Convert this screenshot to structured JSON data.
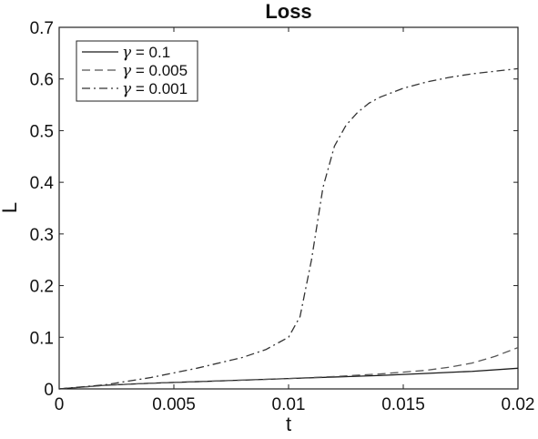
{
  "chart_data": {
    "type": "line",
    "title": "Loss",
    "xlabel": "t",
    "ylabel": "L",
    "xlim": [
      0,
      0.02
    ],
    "ylim": [
      0,
      0.7
    ],
    "xticks": [
      "0",
      "0.005",
      "0.01",
      "0.015",
      "0.02"
    ],
    "yticks": [
      "0",
      "0.1",
      "0.2",
      "0.3",
      "0.4",
      "0.5",
      "0.6",
      "0.7"
    ],
    "grid": false,
    "legend_position": "top-left",
    "series": [
      {
        "name": "γ = 0.1",
        "gamma_symbol": "γ",
        "label_rest": " = 0.1",
        "line_style": "solid",
        "color": "#1a1a1a",
        "x": [
          0,
          0.002,
          0.004,
          0.006,
          0.008,
          0.01,
          0.012,
          0.014,
          0.016,
          0.018,
          0.02
        ],
        "y": [
          0,
          0.007,
          0.011,
          0.014,
          0.017,
          0.02,
          0.023,
          0.026,
          0.03,
          0.034,
          0.04
        ]
      },
      {
        "name": "γ = 0.005",
        "gamma_symbol": "γ",
        "label_rest": " = 0.005",
        "line_style": "dashed",
        "color": "#555555",
        "x": [
          0,
          0.002,
          0.004,
          0.006,
          0.008,
          0.01,
          0.012,
          0.014,
          0.016,
          0.017,
          0.018,
          0.019,
          0.02
        ],
        "y": [
          0,
          0.007,
          0.011,
          0.014,
          0.017,
          0.02,
          0.024,
          0.029,
          0.036,
          0.042,
          0.05,
          0.063,
          0.08
        ]
      },
      {
        "name": "γ = 0.001",
        "gamma_symbol": "γ",
        "label_rest": " = 0.001",
        "line_style": "dashdot",
        "color": "#333333",
        "x": [
          0,
          0.002,
          0.004,
          0.006,
          0.008,
          0.009,
          0.01,
          0.0105,
          0.011,
          0.0115,
          0.012,
          0.0125,
          0.013,
          0.0135,
          0.014,
          0.015,
          0.016,
          0.017,
          0.018,
          0.019,
          0.02
        ],
        "y": [
          0,
          0.008,
          0.022,
          0.04,
          0.061,
          0.076,
          0.1,
          0.14,
          0.25,
          0.39,
          0.47,
          0.51,
          0.535,
          0.553,
          0.565,
          0.582,
          0.594,
          0.603,
          0.61,
          0.615,
          0.62
        ]
      }
    ]
  }
}
